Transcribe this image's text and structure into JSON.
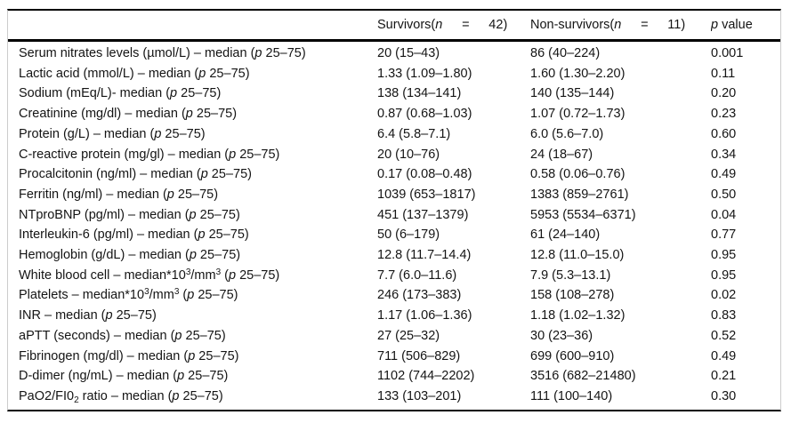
{
  "table": {
    "columns": [
      {
        "label_html": ""
      },
      {
        "label_html": "Survivors(<i>n</i>   =   42)"
      },
      {
        "label_html": "Non-survivors(<i>n</i>   =   11)"
      },
      {
        "label_html": "<i>p</i> value"
      }
    ],
    "rows": [
      {
        "label_html": "Serum nitrates levels (µmol/L) – median (<i>p</i> 25–75)",
        "survivors": "20 (15–43)",
        "non_survivors": "86 (40–224)",
        "p_value": "0.001"
      },
      {
        "label_html": "Lactic acid (mmol/L) – median (<i>p</i> 25–75)",
        "survivors": "1.33 (1.09–1.80)",
        "non_survivors": "1.60 (1.30–2.20)",
        "p_value": "0.11"
      },
      {
        "label_html": "Sodium (mEq/L)- median (<i>p</i> 25–75)",
        "survivors": "138 (134–141)",
        "non_survivors": "140 (135–144)",
        "p_value": "0.20"
      },
      {
        "label_html": "Creatinine (mg/dl) – median (<i>p</i> 25–75)",
        "survivors": "0.87 (0.68–1.03)",
        "non_survivors": "1.07 (0.72–1.73)",
        "p_value": "0.23"
      },
      {
        "label_html": "Protein (g/L) – median (<i>p</i> 25–75)",
        "survivors": "6.4 (5.8–7.1)",
        "non_survivors": "6.0 (5.6–7.0)",
        "p_value": "0.60"
      },
      {
        "label_html": "C-reactive protein (mg/gl) – median (<i>p</i> 25–75)",
        "survivors": "20 (10–76)",
        "non_survivors": "24 (18–67)",
        "p_value": "0.34"
      },
      {
        "label_html": "Procalcitonin (ng/ml) – median (<i>p</i> 25–75)",
        "survivors": "0.17 (0.08–0.48)",
        "non_survivors": "0.58 (0.06–0.76)",
        "p_value": "0.49"
      },
      {
        "label_html": "Ferritin (ng/ml) – median (<i>p</i> 25–75)",
        "survivors": "1039 (653–1817)",
        "non_survivors": "1383 (859–2761)",
        "p_value": "0.50"
      },
      {
        "label_html": "NTproBNP (pg/ml) – median (<i>p</i> 25–75)",
        "survivors": "451 (137–1379)",
        "non_survivors": "5953 (5534–6371)",
        "p_value": "0.04"
      },
      {
        "label_html": "Interleukin-6 (pg/ml) – median (<i>p</i> 25–75)",
        "survivors": "50 (6–179)",
        "non_survivors": "61 (24–140)",
        "p_value": "0.77"
      },
      {
        "label_html": "Hemoglobin (g/dL) – median (<i>p</i> 25–75)",
        "survivors": "12.8 (11.7–14.4)",
        "non_survivors": "12.8 (11.0–15.0)",
        "p_value": "0.95"
      },
      {
        "label_html": "White blood cell – median*10<sup>3</sup>/mm<sup>3</sup> (<i>p</i> 25–75)",
        "survivors": "7.7 (6.0–11.6)",
        "non_survivors": "7.9 (5.3–13.1)",
        "p_value": "0.95"
      },
      {
        "label_html": "Platelets – median*10<sup>3</sup>/mm<sup>3</sup> (<i>p</i> 25–75)",
        "survivors": "246 (173–383)",
        "non_survivors": "158 (108–278)",
        "p_value": "0.02"
      },
      {
        "label_html": "INR – median (<i>p</i> 25–75)",
        "survivors": "1.17 (1.06–1.36)",
        "non_survivors": "1.18 (1.02–1.32)",
        "p_value": "0.83"
      },
      {
        "label_html": "aPTT (seconds) – median (<i>p</i> 25–75)",
        "survivors": "27 (25–32)",
        "non_survivors": "30 (23–36)",
        "p_value": "0.52"
      },
      {
        "label_html": "Fibrinogen (mg/dl) – median (<i>p</i> 25–75)",
        "survivors": "711 (506–829)",
        "non_survivors": "699 (600–910)",
        "p_value": "0.49"
      },
      {
        "label_html": "D-dimer (ng/mL) – median (<i>p</i> 25–75)",
        "survivors": "1102 (744–2202)",
        "non_survivors": "3516 (682–21480)",
        "p_value": "0.21"
      },
      {
        "label_html": "PaO2/FI0<sub>2</sub> ratio – median (<i>p</i> 25–75)",
        "survivors": "133 (103–201)",
        "non_survivors": "111 (100–140)",
        "p_value": "0.30"
      }
    ]
  }
}
